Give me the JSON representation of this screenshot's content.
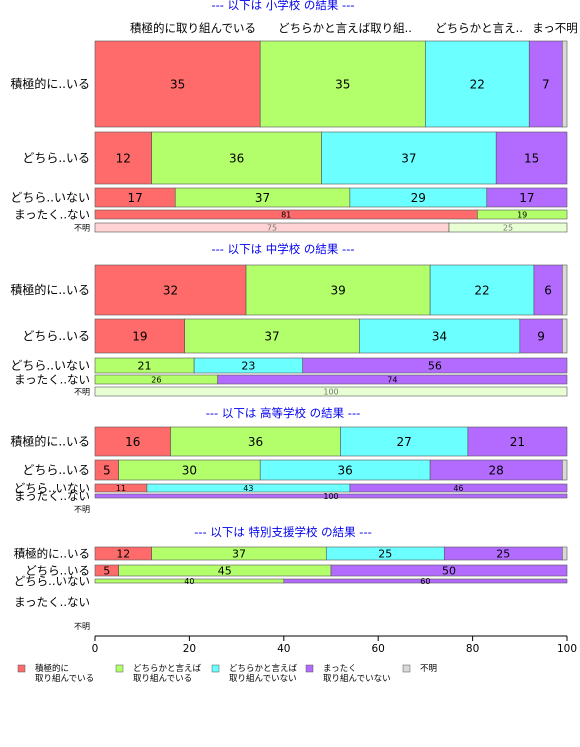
{
  "chart_data": {
    "type": "bar",
    "orientation": "horizontal",
    "stacked": "percent",
    "xlim": [
      0,
      100
    ],
    "x_ticks": [
      "0",
      "20",
      "40",
      "60",
      "80",
      "100"
    ],
    "column_headers": [
      "積極的に取り組んでいる",
      "どちらかと言えば取り組..",
      "どちらかと言え..",
      "まっ不明"
    ],
    "legend": {
      "placement": "bottom",
      "entries": [
        {
          "line1": "積極的に",
          "line2": "取り組んでいる",
          "color": "#ff6b6b"
        },
        {
          "line1": "どちらかと言えば",
          "line2": "取り組んでいる",
          "color": "#b3ff6b"
        },
        {
          "line1": "どちらかと言えば",
          "line2": "取り組んでいない",
          "color": "#6bffff"
        },
        {
          "line1": "まったく",
          "line2": "取り組んでいない",
          "color": "#b36bff"
        },
        {
          "line1": "不明",
          "line2": "",
          "color": "#d9d9d9"
        }
      ]
    },
    "panels": [
      {
        "title": "--- 以下は 小学校 の結果 ---",
        "rows": [
          {
            "label": "積極的に..いる",
            "values": [
              35,
              35,
              22,
              7,
              1
            ]
          },
          {
            "label": "どちら..いる",
            "values": [
              12,
              36,
              37,
              15,
              0
            ]
          },
          {
            "label": "どちら..いない",
            "values": [
              17,
              37,
              29,
              17,
              0
            ]
          },
          {
            "label": "まったく..ない",
            "values": [
              81,
              19,
              0,
              0,
              0
            ]
          },
          {
            "label": "不明",
            "values": [
              75,
              25,
              0,
              0,
              0
            ],
            "pale": true
          }
        ]
      },
      {
        "title": "--- 以下は 中学校 の結果 ---",
        "rows": [
          {
            "label": "積極的に..いる",
            "values": [
              32,
              39,
              22,
              6,
              1
            ]
          },
          {
            "label": "どちら..いる",
            "values": [
              19,
              37,
              34,
              9,
              1
            ]
          },
          {
            "label": "どちら..いない",
            "values": [
              0,
              21,
              23,
              56,
              0
            ]
          },
          {
            "label": "まったく..ない",
            "values": [
              0,
              26,
              0,
              74,
              0
            ]
          },
          {
            "label": "不明",
            "values": [
              0,
              100,
              0,
              0,
              0
            ],
            "pale": true
          }
        ]
      },
      {
        "title": "--- 以下は 高等学校 の結果 ---",
        "rows": [
          {
            "label": "積極的に..いる",
            "values": [
              16,
              36,
              27,
              21,
              0
            ]
          },
          {
            "label": "どちら..いる",
            "values": [
              5,
              30,
              36,
              28,
              1
            ]
          },
          {
            "label": "どちら..いない",
            "values": [
              11,
              0,
              43,
              46,
              0
            ]
          },
          {
            "label": "まったく..ない",
            "values": [
              0,
              0,
              0,
              100,
              0
            ]
          },
          {
            "label": "不明",
            "values": [
              0,
              0,
              0,
              0,
              0
            ]
          }
        ]
      },
      {
        "title": "--- 以下は 特別支援学校 の結果 ---",
        "rows": [
          {
            "label": "積極的に..いる",
            "values": [
              12,
              37,
              25,
              25,
              1
            ]
          },
          {
            "label": "どちら..いる",
            "values": [
              5,
              45,
              0,
              50,
              0
            ]
          },
          {
            "label": "どちら..いない",
            "values": [
              0,
              40,
              0,
              60,
              0
            ]
          },
          {
            "label": "まったく..ない",
            "values": [
              0,
              0,
              0,
              0,
              0
            ]
          },
          {
            "label": "不明",
            "values": [
              0,
              0,
              0,
              0,
              0
            ]
          }
        ]
      }
    ]
  }
}
